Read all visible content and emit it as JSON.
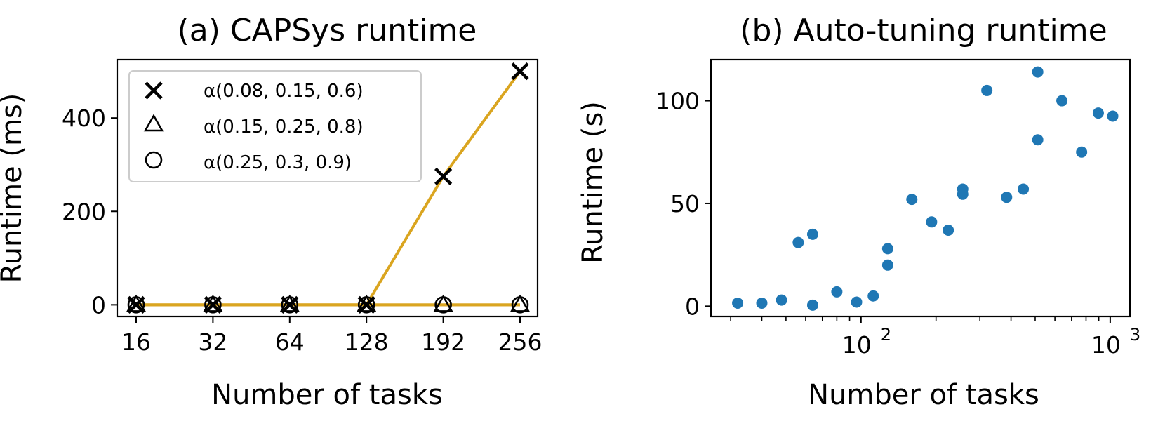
{
  "chart_data": [
    {
      "type": "line",
      "title": "(a) CAPSys runtime",
      "xlabel": "Number of tasks",
      "ylabel": "Runtime (ms)",
      "categories": [
        "16",
        "32",
        "64",
        "128",
        "192",
        "256"
      ],
      "yticks": [
        "0",
        "200",
        "400"
      ],
      "ylim": [
        -25,
        525
      ],
      "line_color": "#DAA520",
      "legend_position": "top-left",
      "series": [
        {
          "name": "α(0.08, 0.15, 0.6)",
          "marker": "x-icon",
          "values": [
            0,
            0,
            0,
            0,
            275,
            500
          ]
        },
        {
          "name": "α(0.15, 0.25, 0.8)",
          "marker": "triangle-icon",
          "values": [
            0,
            0,
            0,
            0,
            0,
            0
          ]
        },
        {
          "name": "α(0.25, 0.3, 0.9)",
          "marker": "circle-icon",
          "values": [
            0,
            0,
            0,
            0,
            0,
            0
          ]
        }
      ]
    },
    {
      "type": "scatter",
      "title": "(b) Auto-tuning runtime",
      "xlabel": "Number of tasks",
      "ylabel": "Runtime (s)",
      "xscale": "log",
      "xlim": [
        25,
        1200
      ],
      "ylim": [
        -5,
        120
      ],
      "xtick_base": "10",
      "xtick_exponents": [
        "2",
        "3"
      ],
      "yticks": [
        "0",
        "50",
        "100"
      ],
      "point_color": "#1f77b4",
      "x": [
        32,
        40,
        48,
        56,
        64,
        64,
        80,
        96,
        112,
        128,
        128,
        160,
        192,
        224,
        256,
        256,
        320,
        384,
        448,
        512,
        512,
        640,
        768,
        896,
        1024
      ],
      "y": [
        1.5,
        1.5,
        3,
        31,
        35,
        0.5,
        7,
        2,
        5,
        20,
        28,
        52,
        41,
        37,
        57,
        54.5,
        105,
        53,
        57,
        81,
        114,
        100,
        75,
        94,
        92.5
      ]
    }
  ]
}
